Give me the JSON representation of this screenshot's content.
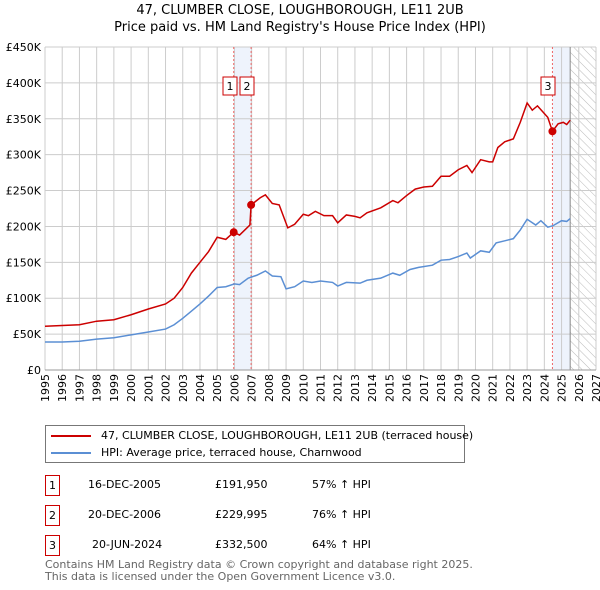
{
  "title": "47, CLUMBER CLOSE, LOUGHBOROUGH, LE11 2UB",
  "subtitle": "Price paid vs. HM Land Registry's House Price Index (HPI)",
  "chart_data": {
    "type": "line",
    "title": "47, CLUMBER CLOSE, LOUGHBOROUGH, LE11 2UB",
    "subtitle": "Price paid vs. HM Land Registry's House Price Index (HPI)",
    "xlim": [
      1995,
      2027
    ],
    "ylim": [
      0,
      450000
    ],
    "x_ticks": [
      "1995",
      "1996",
      "1997",
      "1998",
      "1999",
      "2000",
      "2001",
      "2002",
      "2003",
      "2004",
      "2005",
      "2006",
      "2007",
      "2008",
      "2009",
      "2010",
      "2011",
      "2012",
      "2013",
      "2014",
      "2015",
      "2016",
      "2017",
      "2018",
      "2019",
      "2020",
      "2021",
      "2022",
      "2023",
      "2024",
      "2025",
      "2026",
      "2027"
    ],
    "y_ticks": [
      {
        "v": 0,
        "label": "£0"
      },
      {
        "v": 50000,
        "label": "£50K"
      },
      {
        "v": 100000,
        "label": "£100K"
      },
      {
        "v": 150000,
        "label": "£150K"
      },
      {
        "v": 200000,
        "label": "£200K"
      },
      {
        "v": 250000,
        "label": "£250K"
      },
      {
        "v": 300000,
        "label": "£300K"
      },
      {
        "v": 350000,
        "label": "£350K"
      },
      {
        "v": 400000,
        "label": "£400K"
      },
      {
        "v": 450000,
        "label": "£450K"
      }
    ],
    "grid": true,
    "series": [
      {
        "name": "47, CLUMBER CLOSE, LOUGHBOROUGH, LE11 2UB (terraced house)",
        "color": "#cc0000",
        "x": [
          1995,
          1996,
          1997,
          1998,
          1999,
          2000,
          2001,
          2002,
          2002.5,
          2003,
          2003.5,
          2004,
          2004.5,
          2005,
          2005.5,
          2005.96,
          2006.3,
          2006.9,
          2006.97,
          2007.5,
          2007.8,
          2008.2,
          2008.6,
          2009.1,
          2009.5,
          2010,
          2010.3,
          2010.7,
          2011.2,
          2011.7,
          2012,
          2012.5,
          2013,
          2013.3,
          2013.7,
          2014.5,
          2015.2,
          2015.5,
          2016,
          2016.5,
          2017,
          2017.5,
          2018,
          2018.5,
          2019,
          2019.5,
          2019.8,
          2020.3,
          2020.8,
          2021,
          2021.3,
          2021.7,
          2022.2,
          2022.6,
          2023,
          2023.3,
          2023.6,
          2023.9,
          2024.2,
          2024.47,
          2024.8,
          2025.1,
          2025.3,
          2025.5
        ],
        "y": [
          61000,
          62000,
          63000,
          68000,
          70000,
          77000,
          85000,
          92000,
          100000,
          115000,
          135000,
          150000,
          165000,
          185000,
          182000,
          191950,
          188000,
          202000,
          229995,
          240000,
          244000,
          232000,
          230000,
          198000,
          203000,
          217000,
          215000,
          221000,
          215000,
          215000,
          205000,
          216000,
          214000,
          212000,
          219000,
          226000,
          236000,
          233000,
          243000,
          252000,
          255000,
          256000,
          270000,
          270000,
          279000,
          285000,
          275000,
          293000,
          290000,
          290000,
          310000,
          318000,
          322000,
          345000,
          372000,
          362000,
          368000,
          360000,
          352000,
          332500,
          343000,
          345000,
          342000,
          348000
        ]
      },
      {
        "name": "HPI: Average price, terraced house, Charnwood",
        "color": "#5b8fd4",
        "x": [
          1995,
          1996,
          1997,
          1998,
          1999,
          2000,
          2001,
          2002,
          2002.5,
          2003,
          2003.5,
          2004,
          2004.5,
          2005,
          2005.5,
          2006,
          2006.3,
          2006.8,
          2007.3,
          2007.8,
          2008.2,
          2008.7,
          2009,
          2009.5,
          2010,
          2010.5,
          2011,
          2011.7,
          2012,
          2012.5,
          2013.3,
          2013.7,
          2014.5,
          2015.2,
          2015.6,
          2016.2,
          2016.7,
          2017.5,
          2018,
          2018.5,
          2019,
          2019.5,
          2019.7,
          2020.3,
          2020.8,
          2021.2,
          2021.7,
          2022.2,
          2022.6,
          2023,
          2023.5,
          2023.8,
          2024.2,
          2024.5,
          2025,
          2025.3,
          2025.5
        ],
        "y": [
          39000,
          39000,
          40000,
          43000,
          45000,
          49000,
          53000,
          57000,
          63000,
          72000,
          82000,
          92000,
          103000,
          115000,
          116000,
          120000,
          119000,
          128000,
          132000,
          138000,
          131000,
          130000,
          113000,
          116000,
          124000,
          122000,
          124000,
          122000,
          117000,
          122000,
          121000,
          125000,
          128000,
          135000,
          132000,
          140000,
          143000,
          146000,
          153000,
          154000,
          158000,
          163000,
          156000,
          166000,
          164000,
          177000,
          180000,
          183000,
          195000,
          210000,
          202000,
          208000,
          199000,
          201000,
          208000,
          207000,
          211000
        ]
      }
    ],
    "sales": [
      {
        "label": "1",
        "date": "16-DEC-2005",
        "x": 2005.96,
        "price": "£191,950",
        "value": 191950,
        "hpi": "57% ↑ HPI"
      },
      {
        "label": "2",
        "date": "20-DEC-2006",
        "x": 2006.97,
        "price": "£229,995",
        "value": 229995,
        "hpi": "76% ↑ HPI"
      },
      {
        "label": "3",
        "date": "20-JUN-2024",
        "x": 2024.47,
        "price": "£332,500",
        "value": 332500,
        "hpi": "64% ↑ HPI"
      }
    ],
    "shaded": [
      [
        2005.96,
        2006.97
      ],
      [
        2024.47,
        2025.5
      ]
    ],
    "forecast_hatch_from": 2025.5,
    "legend_position": "below"
  },
  "footer": {
    "line1": "Contains HM Land Registry data © Crown copyright and database right 2025.",
    "line2": "This data is licensed under the Open Government Licence v3.0."
  }
}
